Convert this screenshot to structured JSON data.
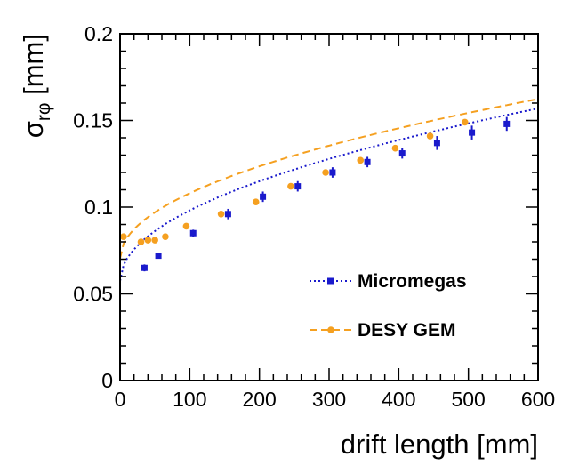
{
  "chart_data": {
    "type": "scatter",
    "title": "",
    "xlabel": "drift length [mm]",
    "ylabel_main": "σ",
    "ylabel_sub": "rφ",
    "ylabel_unit": " [mm]",
    "xlim": [
      0,
      600
    ],
    "ylim": [
      0,
      0.2
    ],
    "x_ticks": [
      0,
      100,
      200,
      300,
      400,
      500,
      600
    ],
    "x_tick_labels": [
      "0",
      "100",
      "200",
      "300",
      "400",
      "500",
      "600"
    ],
    "y_ticks": [
      0,
      0.05,
      0.1,
      0.15,
      0.2
    ],
    "y_tick_labels": [
      "0",
      "0.05",
      "0.1",
      "0.15",
      "0.2"
    ],
    "grid": false,
    "legend_position": "lower-right",
    "series": [
      {
        "name": "Micromegas",
        "color": "#1a1acc",
        "marker": "square",
        "line_style": "dotted",
        "points": [
          {
            "x": 35,
            "y": 0.065,
            "err": 0.002
          },
          {
            "x": 55,
            "y": 0.072,
            "err": 0.0015
          },
          {
            "x": 105,
            "y": 0.085,
            "err": 0.002
          },
          {
            "x": 155,
            "y": 0.096,
            "err": 0.003
          },
          {
            "x": 205,
            "y": 0.106,
            "err": 0.003
          },
          {
            "x": 255,
            "y": 0.112,
            "err": 0.003
          },
          {
            "x": 305,
            "y": 0.12,
            "err": 0.003
          },
          {
            "x": 355,
            "y": 0.126,
            "err": 0.003
          },
          {
            "x": 405,
            "y": 0.131,
            "err": 0.003
          },
          {
            "x": 455,
            "y": 0.137,
            "err": 0.004
          },
          {
            "x": 505,
            "y": 0.143,
            "err": 0.004
          },
          {
            "x": 555,
            "y": 0.148,
            "err": 0.004
          }
        ],
        "fit": {
          "a": 0.0575,
          "b": 0.00406
        }
      },
      {
        "name": "DESY GEM",
        "color": "#f5a020",
        "marker": "circle",
        "line_style": "dashed",
        "points": [
          {
            "x": 5,
            "y": 0.083,
            "err": 0.001
          },
          {
            "x": 30,
            "y": 0.08,
            "err": 0.001
          },
          {
            "x": 40,
            "y": 0.081,
            "err": 0.001
          },
          {
            "x": 50,
            "y": 0.081,
            "err": 0.001
          },
          {
            "x": 65,
            "y": 0.083,
            "err": 0.001
          },
          {
            "x": 95,
            "y": 0.089,
            "err": 0.001
          },
          {
            "x": 145,
            "y": 0.096,
            "err": 0.001
          },
          {
            "x": 195,
            "y": 0.103,
            "err": 0.001
          },
          {
            "x": 245,
            "y": 0.112,
            "err": 0.001
          },
          {
            "x": 295,
            "y": 0.12,
            "err": 0.001
          },
          {
            "x": 345,
            "y": 0.127,
            "err": 0.001
          },
          {
            "x": 395,
            "y": 0.134,
            "err": 0.001
          },
          {
            "x": 445,
            "y": 0.141,
            "err": 0.001
          },
          {
            "x": 495,
            "y": 0.149,
            "err": 0.001
          }
        ],
        "fit": {
          "a": 0.0705,
          "b": 0.00375
        }
      }
    ]
  }
}
